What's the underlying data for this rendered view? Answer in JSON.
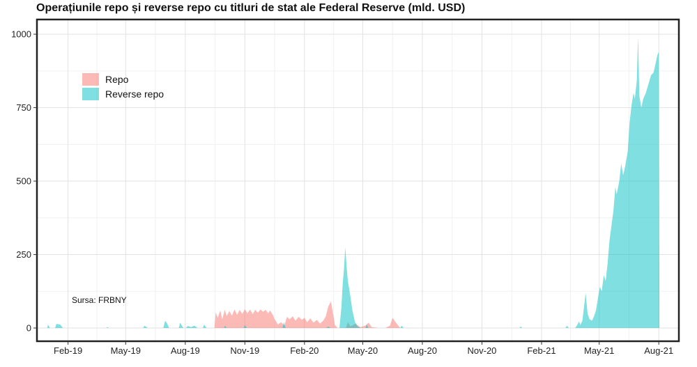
{
  "page": {
    "title": "Operațiunile repo și reverse repo cu titluri de stat ale Federal Reserve (mld. USD)"
  },
  "chart_data": {
    "type": "area",
    "title": "Operațiunile repo și reverse repo cu titluri de stat ale Federal Reserve (mld. USD)",
    "xlabel": "",
    "ylabel": "",
    "x_start": "2018-12-15",
    "x_end": "2021-09-01",
    "ylim": [
      -45,
      1050
    ],
    "y_ticks": [
      0,
      250,
      500,
      750,
      1000
    ],
    "x_ticks": [
      {
        "date": "2019-02-01",
        "label": "Feb-19"
      },
      {
        "date": "2019-05-01",
        "label": "May-19"
      },
      {
        "date": "2019-08-01",
        "label": "Aug-19"
      },
      {
        "date": "2019-11-01",
        "label": "Nov-19"
      },
      {
        "date": "2020-02-01",
        "label": "Feb-20"
      },
      {
        "date": "2020-05-01",
        "label": "May-20"
      },
      {
        "date": "2020-08-01",
        "label": "Aug-20"
      },
      {
        "date": "2020-11-01",
        "label": "Nov-20"
      },
      {
        "date": "2021-02-01",
        "label": "Feb-21"
      },
      {
        "date": "2021-05-01",
        "label": "May-21"
      },
      {
        "date": "2021-08-01",
        "label": "Aug-21"
      }
    ],
    "grid": true,
    "legend_position": "top-left",
    "note": "Sursa: FRBNY",
    "series": [
      {
        "name": "Repo",
        "color": "#F8766D",
        "fill_opacity": 0.5,
        "points": [
          [
            "2019-09-15",
            0
          ],
          [
            "2019-09-17",
            53
          ],
          [
            "2019-09-20",
            35
          ],
          [
            "2019-09-24",
            60
          ],
          [
            "2019-09-27",
            30
          ],
          [
            "2019-10-01",
            62
          ],
          [
            "2019-10-04",
            40
          ],
          [
            "2019-10-08",
            58
          ],
          [
            "2019-10-12",
            42
          ],
          [
            "2019-10-16",
            63
          ],
          [
            "2019-10-20",
            45
          ],
          [
            "2019-10-24",
            62
          ],
          [
            "2019-10-28",
            48
          ],
          [
            "2019-11-01",
            64
          ],
          [
            "2019-11-05",
            50
          ],
          [
            "2019-11-09",
            63
          ],
          [
            "2019-11-13",
            47
          ],
          [
            "2019-11-17",
            62
          ],
          [
            "2019-11-21",
            52
          ],
          [
            "2019-11-25",
            63
          ],
          [
            "2019-11-29",
            55
          ],
          [
            "2019-12-03",
            62
          ],
          [
            "2019-12-07",
            50
          ],
          [
            "2019-12-10",
            60
          ],
          [
            "2019-12-14",
            45
          ],
          [
            "2019-12-17",
            30
          ],
          [
            "2019-12-22",
            12
          ],
          [
            "2019-12-27",
            20
          ],
          [
            "2020-01-01",
            8
          ],
          [
            "2020-01-05",
            38
          ],
          [
            "2020-01-09",
            30
          ],
          [
            "2020-01-14",
            40
          ],
          [
            "2020-01-18",
            25
          ],
          [
            "2020-01-23",
            38
          ],
          [
            "2020-01-28",
            28
          ],
          [
            "2020-02-01",
            35
          ],
          [
            "2020-02-05",
            20
          ],
          [
            "2020-02-10",
            33
          ],
          [
            "2020-02-15",
            18
          ],
          [
            "2020-02-20",
            28
          ],
          [
            "2020-02-25",
            15
          ],
          [
            "2020-03-01",
            25
          ],
          [
            "2020-03-05",
            40
          ],
          [
            "2020-03-09",
            75
          ],
          [
            "2020-03-13",
            90
          ],
          [
            "2020-03-16",
            50
          ],
          [
            "2020-03-19",
            10
          ],
          [
            "2020-03-23",
            0
          ],
          [
            "2020-04-05",
            0
          ],
          [
            "2020-04-08",
            20
          ],
          [
            "2020-04-12",
            5
          ],
          [
            "2020-04-20",
            15
          ],
          [
            "2020-04-27",
            3
          ],
          [
            "2020-05-05",
            8
          ],
          [
            "2020-05-10",
            18
          ],
          [
            "2020-05-15",
            3
          ],
          [
            "2020-05-25",
            0
          ],
          [
            "2020-06-05",
            0
          ],
          [
            "2020-06-12",
            8
          ],
          [
            "2020-06-16",
            35
          ],
          [
            "2020-06-20",
            22
          ],
          [
            "2020-06-24",
            10
          ],
          [
            "2020-06-28",
            0
          ],
          [
            "2021-09-01",
            0
          ]
        ]
      },
      {
        "name": "Reverse repo",
        "color": "#00BFC4",
        "fill_opacity": 0.5,
        "points": [
          [
            "2018-12-15",
            0
          ],
          [
            "2018-12-31",
            0
          ],
          [
            "2019-01-01",
            12
          ],
          [
            "2019-01-04",
            0
          ],
          [
            "2019-01-12",
            0
          ],
          [
            "2019-01-14",
            14
          ],
          [
            "2019-01-20",
            12
          ],
          [
            "2019-01-24",
            0
          ],
          [
            "2019-04-01",
            0
          ],
          [
            "2019-04-03",
            3
          ],
          [
            "2019-04-05",
            0
          ],
          [
            "2019-05-28",
            0
          ],
          [
            "2019-05-30",
            8
          ],
          [
            "2019-06-04",
            0
          ],
          [
            "2019-06-28",
            0
          ],
          [
            "2019-07-01",
            25
          ],
          [
            "2019-07-04",
            15
          ],
          [
            "2019-07-07",
            0
          ],
          [
            "2019-07-22",
            0
          ],
          [
            "2019-07-24",
            18
          ],
          [
            "2019-07-29",
            0
          ],
          [
            "2019-08-02",
            0
          ],
          [
            "2019-08-05",
            7
          ],
          [
            "2019-08-10",
            3
          ],
          [
            "2019-08-15",
            8
          ],
          [
            "2019-08-20",
            0
          ],
          [
            "2019-08-28",
            0
          ],
          [
            "2019-08-30",
            12
          ],
          [
            "2019-09-03",
            0
          ],
          [
            "2019-09-30",
            0
          ],
          [
            "2019-10-01",
            8
          ],
          [
            "2019-10-04",
            0
          ],
          [
            "2019-10-30",
            0
          ],
          [
            "2019-11-01",
            10
          ],
          [
            "2019-11-04",
            0
          ],
          [
            "2019-12-29",
            0
          ],
          [
            "2019-12-31",
            20
          ],
          [
            "2020-01-03",
            0
          ],
          [
            "2020-03-05",
            0
          ],
          [
            "2020-03-09",
            5
          ],
          [
            "2020-03-12",
            0
          ],
          [
            "2020-03-26",
            0
          ],
          [
            "2020-03-29",
            70
          ],
          [
            "2020-03-31",
            150
          ],
          [
            "2020-04-02",
            200
          ],
          [
            "2020-04-04",
            275
          ],
          [
            "2020-04-06",
            210
          ],
          [
            "2020-04-08",
            160
          ],
          [
            "2020-04-11",
            120
          ],
          [
            "2020-04-15",
            60
          ],
          [
            "2020-04-19",
            20
          ],
          [
            "2020-04-23",
            5
          ],
          [
            "2020-04-28",
            0
          ],
          [
            "2020-05-05",
            0
          ],
          [
            "2020-05-07",
            12
          ],
          [
            "2020-05-10",
            0
          ],
          [
            "2020-06-28",
            0
          ],
          [
            "2020-06-30",
            8
          ],
          [
            "2020-07-03",
            0
          ],
          [
            "2020-12-29",
            0
          ],
          [
            "2020-12-31",
            5
          ],
          [
            "2021-01-02",
            0
          ],
          [
            "2021-03-10",
            0
          ],
          [
            "2021-03-12",
            8
          ],
          [
            "2021-03-15",
            0
          ],
          [
            "2021-03-25",
            0
          ],
          [
            "2021-03-28",
            10
          ],
          [
            "2021-03-31",
            22
          ],
          [
            "2021-04-02",
            10
          ],
          [
            "2021-04-05",
            25
          ],
          [
            "2021-04-08",
            80
          ],
          [
            "2021-04-10",
            120
          ],
          [
            "2021-04-13",
            50
          ],
          [
            "2021-04-16",
            30
          ],
          [
            "2021-04-20",
            25
          ],
          [
            "2021-04-23",
            40
          ],
          [
            "2021-04-26",
            60
          ],
          [
            "2021-04-29",
            100
          ],
          [
            "2021-05-02",
            140
          ],
          [
            "2021-05-05",
            125
          ],
          [
            "2021-05-08",
            180
          ],
          [
            "2021-05-11",
            160
          ],
          [
            "2021-05-14",
            220
          ],
          [
            "2021-05-17",
            300
          ],
          [
            "2021-05-20",
            350
          ],
          [
            "2021-05-23",
            400
          ],
          [
            "2021-05-26",
            480
          ],
          [
            "2021-05-28",
            455
          ],
          [
            "2021-06-01",
            500
          ],
          [
            "2021-06-04",
            560
          ],
          [
            "2021-06-07",
            520
          ],
          [
            "2021-06-10",
            550
          ],
          [
            "2021-06-14",
            600
          ],
          [
            "2021-06-17",
            700
          ],
          [
            "2021-06-20",
            760
          ],
          [
            "2021-06-23",
            800
          ],
          [
            "2021-06-25",
            780
          ],
          [
            "2021-06-28",
            840
          ],
          [
            "2021-06-30",
            990
          ],
          [
            "2021-07-02",
            790
          ],
          [
            "2021-07-05",
            750
          ],
          [
            "2021-07-08",
            780
          ],
          [
            "2021-07-12",
            800
          ],
          [
            "2021-07-16",
            830
          ],
          [
            "2021-07-20",
            860
          ],
          [
            "2021-07-24",
            870
          ],
          [
            "2021-07-27",
            900
          ],
          [
            "2021-07-30",
            930
          ],
          [
            "2021-08-01",
            940
          ],
          [
            "2021-08-02",
            0
          ],
          [
            "2021-09-01",
            0
          ]
        ]
      }
    ]
  }
}
